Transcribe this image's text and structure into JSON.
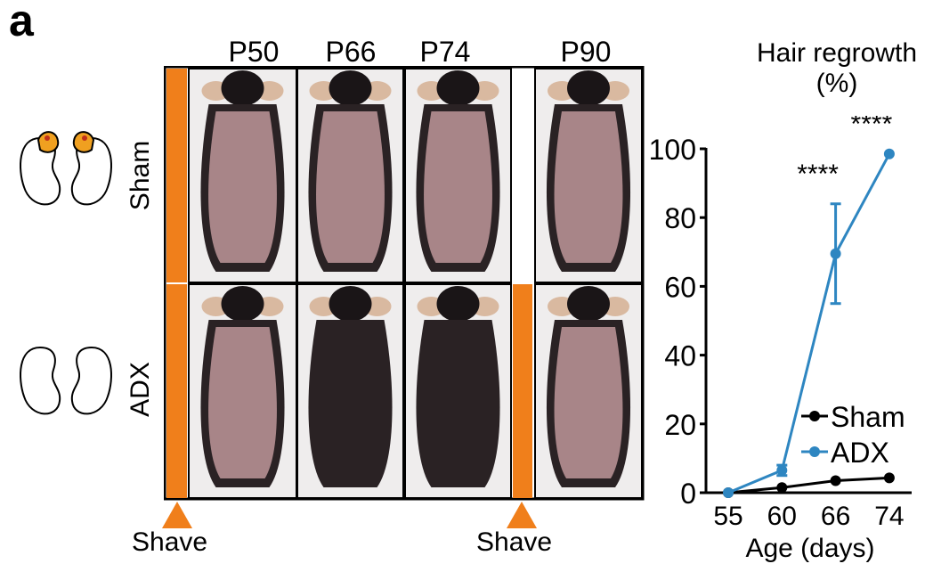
{
  "panel_letter": "a",
  "columns": [
    "P50",
    "P66",
    "P74",
    "P90"
  ],
  "rows": [
    "Sham",
    "ADX"
  ],
  "shave_label": "Shave",
  "colors": {
    "shave_bar": "#f07f1b",
    "sham": "#000000",
    "adx": "#2e86c1"
  },
  "chart_data": {
    "type": "line",
    "title": "Hair regrowth (%)",
    "xlabel": "Age (days)",
    "ylabel": "Hair regrowth (%)",
    "categories": [
      "55",
      "60",
      "66",
      "74"
    ],
    "ylim": [
      0,
      100
    ],
    "yticks": [
      "0",
      "20",
      "40",
      "60",
      "80",
      "100"
    ],
    "series": [
      {
        "name": "Sham",
        "values": [
          0,
          1.5,
          3.5,
          4.3
        ],
        "marker": "circle/square",
        "color": "#000000"
      },
      {
        "name": "ADX",
        "values": [
          0,
          6.5,
          69.5,
          98.5
        ],
        "error": [
          0,
          1.5,
          14.5,
          0
        ],
        "color": "#2e86c1"
      }
    ],
    "annotations": [
      {
        "x": "66",
        "text": "****"
      },
      {
        "x": "74",
        "text": "****"
      }
    ],
    "legend": "bottom-right",
    "grid": false
  }
}
